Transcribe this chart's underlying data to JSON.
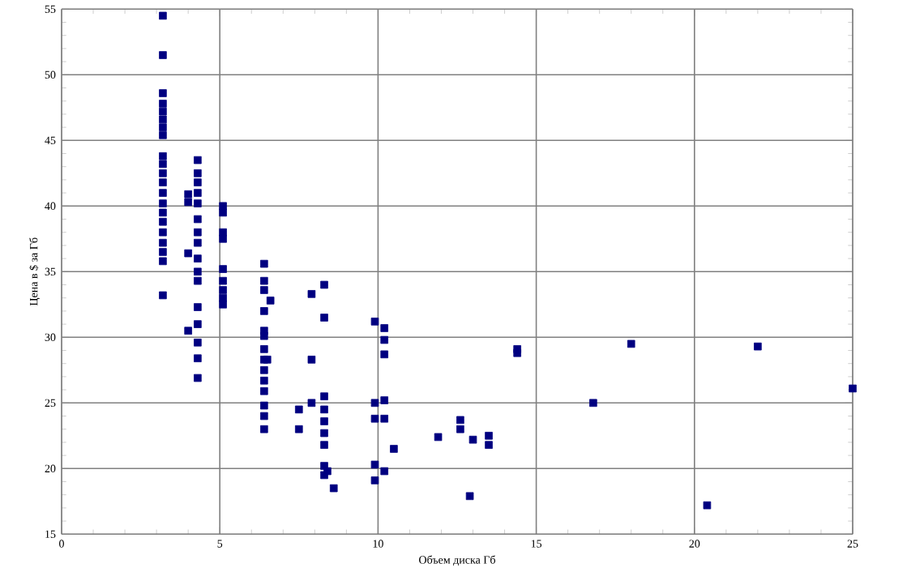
{
  "chart_data": {
    "type": "scatter",
    "xlabel": "Объем диска Гб",
    "ylabel": "Цена в $ за Гб",
    "x": [
      3.2,
      3.2,
      3.2,
      3.2,
      3.2,
      3.2,
      3.2,
      3.2,
      3.2,
      3.2,
      3.2,
      3.2,
      3.2,
      3.2,
      3.2,
      3.2,
      3.2,
      3.2,
      3.2,
      3.2,
      3.2,
      4.0,
      4.0,
      4.0,
      4.0,
      4.3,
      4.3,
      4.3,
      4.3,
      4.3,
      4.3,
      4.3,
      4.3,
      4.3,
      4.3,
      4.3,
      4.3,
      4.3,
      4.3,
      4.3,
      4.3,
      5.1,
      5.1,
      5.1,
      5.1,
      5.1,
      5.1,
      5.1,
      5.1,
      5.1,
      6.4,
      6.4,
      6.4,
      6.4,
      6.4,
      6.4,
      6.4,
      6.4,
      6.4,
      6.4,
      6.4,
      6.4,
      6.4,
      6.4,
      6.5,
      6.6,
      7.5,
      7.5,
      7.9,
      7.9,
      7.9,
      8.3,
      8.3,
      8.3,
      8.3,
      8.3,
      8.3,
      8.3,
      8.3,
      8.3,
      8.4,
      8.6,
      9.9,
      10.2,
      10.2,
      10.2,
      9.9,
      10.2,
      9.9,
      10.2,
      9.9,
      10.2,
      9.9,
      10.5,
      11.9,
      12.6,
      12.6,
      13.0,
      13.5,
      13.5,
      12.9,
      14.4,
      14.4,
      16.8,
      18.0,
      22.0,
      25.0,
      20.4
    ],
    "values": [
      54.5,
      51.5,
      48.6,
      47.8,
      47.2,
      46.6,
      46.0,
      45.4,
      43.8,
      43.2,
      42.5,
      41.8,
      41.0,
      40.2,
      39.5,
      38.8,
      38.0,
      37.2,
      36.5,
      35.8,
      33.2,
      40.9,
      40.3,
      36.4,
      30.5,
      43.5,
      42.5,
      41.8,
      41.0,
      40.2,
      39.0,
      38.0,
      37.2,
      36.0,
      35.0,
      34.3,
      32.3,
      31.0,
      29.6,
      28.4,
      26.9,
      40.0,
      39.5,
      38.0,
      37.5,
      35.2,
      34.3,
      33.6,
      33.0,
      32.5,
      35.6,
      34.3,
      33.6,
      32.0,
      30.5,
      30.1,
      29.1,
      28.3,
      27.5,
      26.7,
      25.9,
      24.8,
      24.0,
      23.0,
      28.3,
      32.8,
      24.5,
      23.0,
      33.3,
      28.3,
      25.0,
      34.0,
      31.5,
      25.5,
      24.5,
      23.6,
      22.7,
      21.8,
      20.2,
      19.5,
      19.8,
      18.5,
      31.2,
      30.7,
      29.8,
      28.7,
      25.0,
      25.2,
      23.8,
      23.8,
      20.3,
      19.8,
      19.1,
      21.5,
      22.4,
      23.7,
      23.0,
      22.2,
      22.5,
      21.8,
      17.9,
      29.1,
      28.8,
      25.0,
      29.5,
      29.3,
      26.1,
      17.2
    ],
    "color": "#000080",
    "marker": "square",
    "grid": true,
    "xlim": [
      0,
      25
    ],
    "xticks": [
      0,
      5,
      10,
      15,
      20,
      25
    ],
    "ylim": [
      15,
      55
    ],
    "yticks": [
      15,
      20,
      25,
      30,
      35,
      40,
      45,
      50,
      55
    ]
  }
}
